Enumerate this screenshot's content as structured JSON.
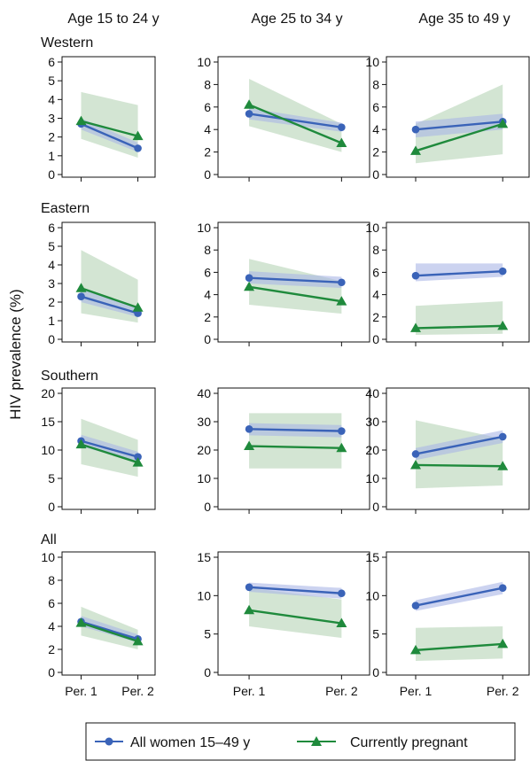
{
  "ylabel": "HIV prevalence (%)",
  "col_titles": [
    "Age 15 to 24 y",
    "Age 25 to 34 y",
    "Age 35 to 49 y"
  ],
  "row_titles": [
    "Western",
    "Eastern",
    "Southern",
    "All"
  ],
  "x_categories": [
    "Per. 1",
    "Per. 2"
  ],
  "legend": {
    "items": [
      {
        "label": "All women 15–49 y",
        "color": "#3a63b8",
        "marker": "circle"
      },
      {
        "label": "Currently pregnant",
        "color": "#1f8a3c",
        "marker": "triangle"
      }
    ]
  },
  "colors": {
    "women": "#3a63b8",
    "pregnant": "#1f8a3c",
    "women_band": "#aab6e6",
    "pregnant_band": "#b5d4b5"
  },
  "chart_data": [
    {
      "type": "line",
      "row": "Western",
      "col": "Age 15 to 24 y",
      "categories": [
        "Per. 1",
        "Per. 2"
      ],
      "ylim": [
        0,
        6
      ],
      "yticks": [
        0,
        1,
        2,
        3,
        4,
        5,
        6
      ],
      "series": [
        {
          "name": "All women 15–49 y",
          "values": [
            2.7,
            1.4
          ],
          "ci_low": [
            2.4,
            1.2
          ],
          "ci_high": [
            3.0,
            1.7
          ]
        },
        {
          "name": "Currently pregnant",
          "values": [
            2.85,
            2.05
          ],
          "ci_low": [
            1.9,
            0.9
          ],
          "ci_high": [
            4.4,
            3.7
          ]
        }
      ]
    },
    {
      "type": "line",
      "row": "Western",
      "col": "Age 25 to 34 y",
      "categories": [
        "Per. 1",
        "Per. 2"
      ],
      "ylim": [
        0,
        10
      ],
      "yticks": [
        0,
        2,
        4,
        6,
        8,
        10
      ],
      "series": [
        {
          "name": "All women 15–49 y",
          "values": [
            5.4,
            4.2
          ],
          "ci_low": [
            4.9,
            3.8
          ],
          "ci_high": [
            5.9,
            4.6
          ]
        },
        {
          "name": "Currently pregnant",
          "values": [
            6.2,
            2.8
          ],
          "ci_low": [
            4.3,
            2.0
          ],
          "ci_high": [
            8.5,
            4.5
          ]
        }
      ]
    },
    {
      "type": "line",
      "row": "Western",
      "col": "Age 35 to 49 y",
      "categories": [
        "Per. 1",
        "Per. 2"
      ],
      "ylim": [
        0,
        10
      ],
      "yticks": [
        0,
        2,
        4,
        6,
        8,
        10
      ],
      "series": [
        {
          "name": "All women 15–49 y",
          "values": [
            4.0,
            4.7
          ],
          "ci_low": [
            3.3,
            4.0
          ],
          "ci_high": [
            4.7,
            5.4
          ]
        },
        {
          "name": "Currently pregnant",
          "values": [
            2.1,
            4.5
          ],
          "ci_low": [
            1.0,
            1.8
          ],
          "ci_high": [
            4.5,
            8.0
          ]
        }
      ]
    },
    {
      "type": "line",
      "row": "Eastern",
      "col": "Age 15 to 24 y",
      "categories": [
        "Per. 1",
        "Per. 2"
      ],
      "ylim": [
        0,
        6
      ],
      "yticks": [
        0,
        1,
        2,
        3,
        4,
        5,
        6
      ],
      "series": [
        {
          "name": "All women 15–49 y",
          "values": [
            2.3,
            1.4
          ],
          "ci_low": [
            2.0,
            1.2
          ],
          "ci_high": [
            2.7,
            1.7
          ]
        },
        {
          "name": "Currently pregnant",
          "values": [
            2.75,
            1.7
          ],
          "ci_low": [
            1.4,
            0.9
          ],
          "ci_high": [
            4.8,
            3.2
          ]
        }
      ]
    },
    {
      "type": "line",
      "row": "Eastern",
      "col": "Age 25 to 34 y",
      "categories": [
        "Per. 1",
        "Per. 2"
      ],
      "ylim": [
        0,
        10
      ],
      "yticks": [
        0,
        2,
        4,
        6,
        8,
        10
      ],
      "series": [
        {
          "name": "All women 15–49 y",
          "values": [
            5.5,
            5.1
          ],
          "ci_low": [
            5.0,
            4.6
          ],
          "ci_high": [
            6.1,
            5.6
          ]
        },
        {
          "name": "Currently pregnant",
          "values": [
            4.7,
            3.4
          ],
          "ci_low": [
            3.1,
            2.3
          ],
          "ci_high": [
            7.2,
            5.2
          ]
        }
      ]
    },
    {
      "type": "line",
      "row": "Eastern",
      "col": "Age 35 to 49 y",
      "categories": [
        "Per. 1",
        "Per. 2"
      ],
      "ylim": [
        0,
        10
      ],
      "yticks": [
        0,
        2,
        4,
        6,
        8,
        10
      ],
      "series": [
        {
          "name": "All women 15–49 y",
          "values": [
            5.7,
            6.1
          ],
          "ci_low": [
            5.2,
            5.6
          ],
          "ci_high": [
            6.8,
            6.8
          ]
        },
        {
          "name": "Currently pregnant",
          "values": [
            1.0,
            1.2
          ],
          "ci_low": [
            0.4,
            0.5
          ],
          "ci_high": [
            3.0,
            3.4
          ]
        }
      ]
    },
    {
      "type": "line",
      "row": "Southern",
      "col": "Age 15 to 24 y",
      "categories": [
        "Per. 1",
        "Per. 2"
      ],
      "ylim": [
        0,
        20
      ],
      "yticks": [
        0,
        5,
        10,
        15,
        20
      ],
      "series": [
        {
          "name": "All women 15–49 y",
          "values": [
            11.6,
            8.8
          ],
          "ci_low": [
            10.6,
            8.0
          ],
          "ci_high": [
            12.7,
            9.7
          ]
        },
        {
          "name": "Currently pregnant",
          "values": [
            11.0,
            7.8
          ],
          "ci_low": [
            7.5,
            5.3
          ],
          "ci_high": [
            15.5,
            11.8
          ]
        }
      ]
    },
    {
      "type": "line",
      "row": "Southern",
      "col": "Age 25 to 34 y",
      "categories": [
        "Per. 1",
        "Per. 2"
      ],
      "ylim": [
        0,
        40
      ],
      "yticks": [
        0,
        10,
        20,
        30,
        40
      ],
      "series": [
        {
          "name": "All women 15–49 y",
          "values": [
            27.4,
            26.7
          ],
          "ci_low": [
            25.2,
            24.5
          ],
          "ci_high": [
            29.5,
            28.8
          ]
        },
        {
          "name": "Currently pregnant",
          "values": [
            21.4,
            20.7
          ],
          "ci_low": [
            13.5,
            13.5
          ],
          "ci_high": [
            33.0,
            33.0
          ]
        }
      ]
    },
    {
      "type": "line",
      "row": "Southern",
      "col": "Age 35 to 49 y",
      "categories": [
        "Per. 1",
        "Per. 2"
      ],
      "ylim": [
        0,
        40
      ],
      "yticks": [
        0,
        10,
        20,
        30,
        40
      ],
      "series": [
        {
          "name": "All women 15–49 y",
          "values": [
            18.6,
            24.7
          ],
          "ci_low": [
            16.5,
            22.5
          ],
          "ci_high": [
            20.7,
            27.0
          ]
        },
        {
          "name": "Currently pregnant",
          "values": [
            14.7,
            14.3
          ],
          "ci_low": [
            6.5,
            7.5
          ],
          "ci_high": [
            30.5,
            24.0
          ]
        }
      ]
    },
    {
      "type": "line",
      "row": "All",
      "col": "Age 15 to 24 y",
      "categories": [
        "Per. 1",
        "Per. 2"
      ],
      "ylim": [
        0,
        10
      ],
      "yticks": [
        0,
        2,
        4,
        6,
        8,
        10
      ],
      "series": [
        {
          "name": "All women 15–49 y",
          "values": [
            4.4,
            2.9
          ],
          "ci_low": [
            4.0,
            2.6
          ],
          "ci_high": [
            4.9,
            3.3
          ]
        },
        {
          "name": "Currently pregnant",
          "values": [
            4.3,
            2.7
          ],
          "ci_low": [
            3.2,
            2.0
          ],
          "ci_high": [
            5.7,
            3.7
          ]
        }
      ]
    },
    {
      "type": "line",
      "row": "All",
      "col": "Age 25 to 34 y",
      "categories": [
        "Per. 1",
        "Per. 2"
      ],
      "ylim": [
        0,
        15
      ],
      "yticks": [
        0,
        5,
        10,
        15
      ],
      "series": [
        {
          "name": "All women 15–49 y",
          "values": [
            11.1,
            10.3
          ],
          "ci_low": [
            10.5,
            9.6
          ],
          "ci_high": [
            11.7,
            11.0
          ]
        },
        {
          "name": "Currently pregnant",
          "values": [
            8.1,
            6.4
          ],
          "ci_low": [
            6.0,
            4.5
          ],
          "ci_high": [
            11.0,
            9.5
          ]
        }
      ]
    },
    {
      "type": "line",
      "row": "All",
      "col": "Age 35 to 49 y",
      "categories": [
        "Per. 1",
        "Per. 2"
      ],
      "ylim": [
        0,
        15
      ],
      "yticks": [
        0,
        5,
        10,
        15
      ],
      "series": [
        {
          "name": "All women 15–49 y",
          "values": [
            8.7,
            11.0
          ],
          "ci_low": [
            8.0,
            10.2
          ],
          "ci_high": [
            9.4,
            11.8
          ]
        },
        {
          "name": "Currently pregnant",
          "values": [
            2.9,
            3.7
          ],
          "ci_low": [
            1.5,
            1.8
          ],
          "ci_high": [
            5.8,
            6.0
          ]
        }
      ]
    }
  ]
}
